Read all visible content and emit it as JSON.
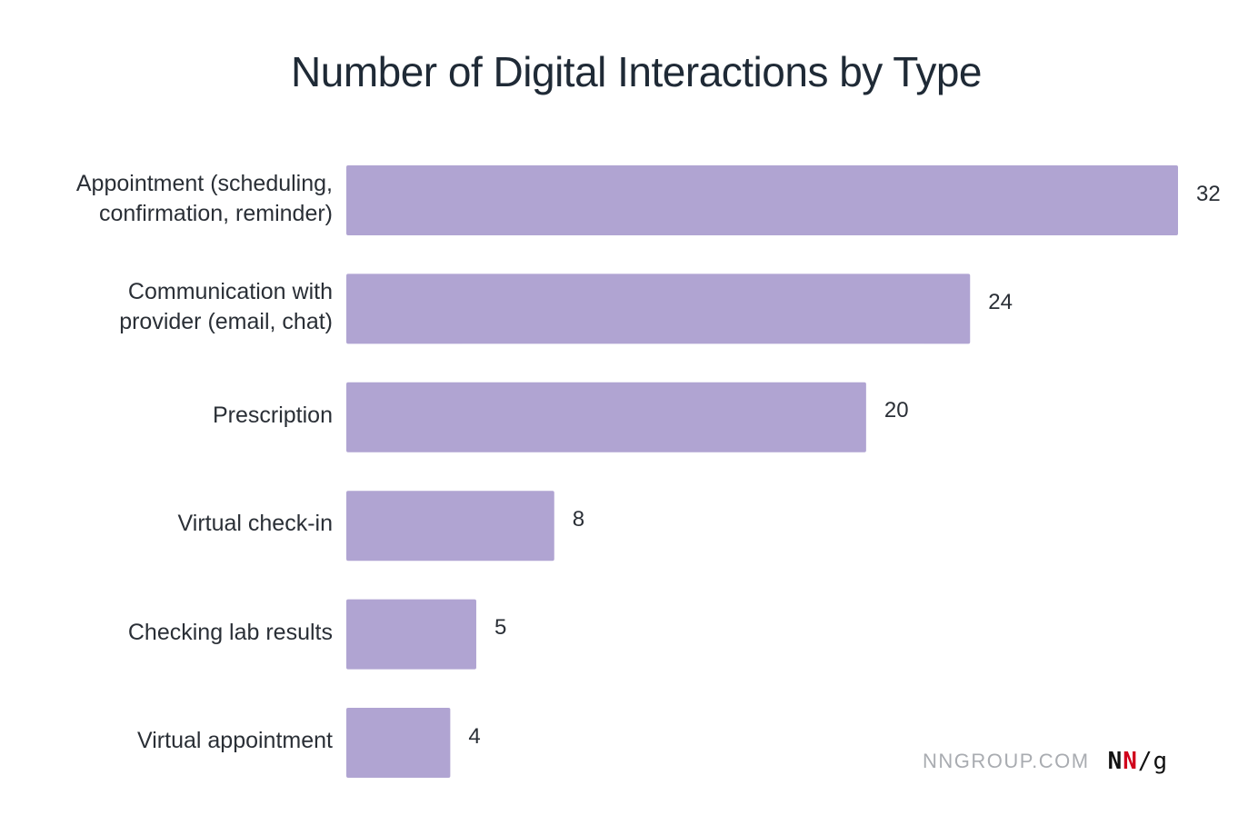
{
  "chart_data": {
    "type": "bar",
    "orientation": "horizontal",
    "title": "Number of Digital Interactions by Type",
    "categories": [
      "Appointment (scheduling,\nconfirmation, reminder)",
      "Communication with\nprovider (email, chat)",
      "Prescription",
      "Virtual check-in",
      "Checking lab results",
      "Virtual appointment"
    ],
    "values": [
      32,
      24,
      20,
      8,
      5,
      4
    ],
    "value_labels": [
      "32",
      "24",
      "20",
      "8",
      "5",
      "4"
    ],
    "xlim": [
      0,
      32
    ],
    "grid": false,
    "legend": "none",
    "bar_color": "#b0a4d2"
  },
  "footer": {
    "site": "NNGROUP.COM",
    "logo": {
      "n1": "N",
      "n2": "N",
      "tail": "/g"
    }
  },
  "colors": {
    "bar": "#b0a4d2",
    "logo_red": "#d0021b",
    "logo_black": "#111111",
    "footer_text": "#a9acb1"
  }
}
